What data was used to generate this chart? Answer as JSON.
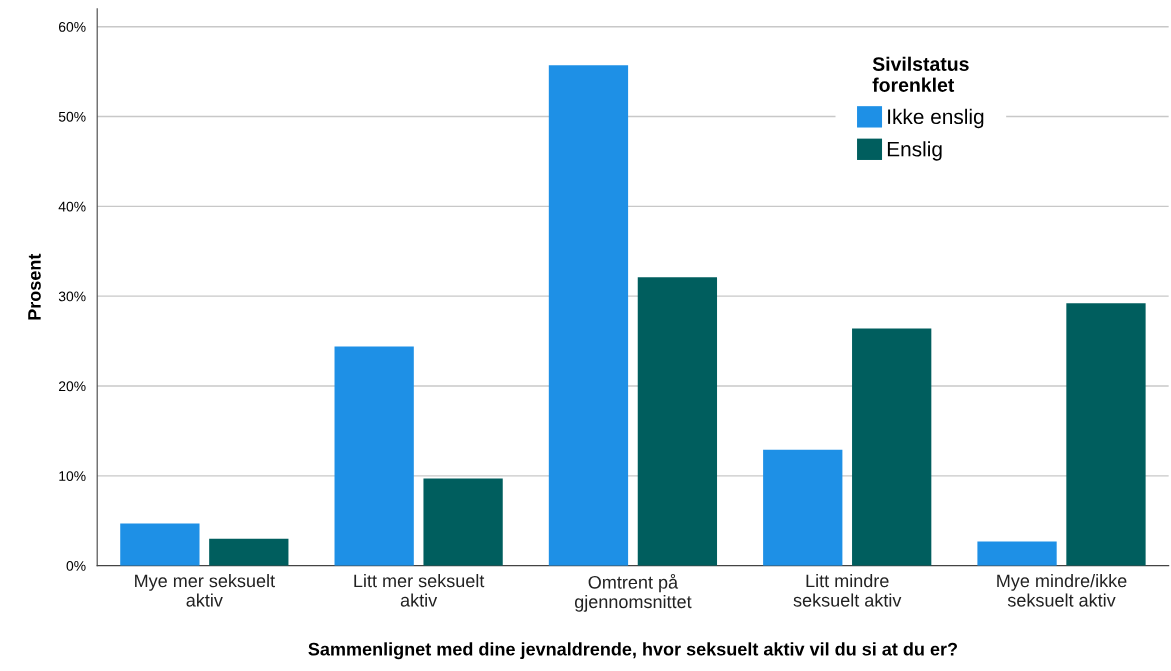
{
  "chart_data": {
    "type": "bar",
    "xlabel": "Sammenlignet med dine jevnaldrende, hvor seksuelt aktiv vil du si at du er?",
    "ylabel": "Prosent",
    "legend_title": "Sivilstatus\nforenklet",
    "categories": [
      "Mye mer seksuelt\naktiv",
      "Litt mer seksuelt\naktiv",
      "Omtrent på\ngjennomsnittet",
      "Litt mindre\nseksuelt aktiv",
      "Mye mindre/ikke\nseksuelt aktiv"
    ],
    "series": [
      {
        "name": "Ikke enslig",
        "color": "#1e90e6",
        "values": [
          4.7,
          24.4,
          55.7,
          12.9,
          2.7
        ]
      },
      {
        "name": "Enslig",
        "color": "#005e5e",
        "values": [
          3.0,
          9.7,
          32.1,
          26.4,
          29.2
        ]
      }
    ],
    "ylim": [
      0,
      62
    ],
    "yticks": [
      {
        "value": 0,
        "label": "0%"
      },
      {
        "value": 10,
        "label": "10%"
      },
      {
        "value": 20,
        "label": "20%"
      },
      {
        "value": 30,
        "label": "30%"
      },
      {
        "value": 40,
        "label": "40%"
      },
      {
        "value": 50,
        "label": "50%"
      },
      {
        "value": 60,
        "label": "60%"
      }
    ],
    "grid": "y",
    "legend": "top right"
  }
}
